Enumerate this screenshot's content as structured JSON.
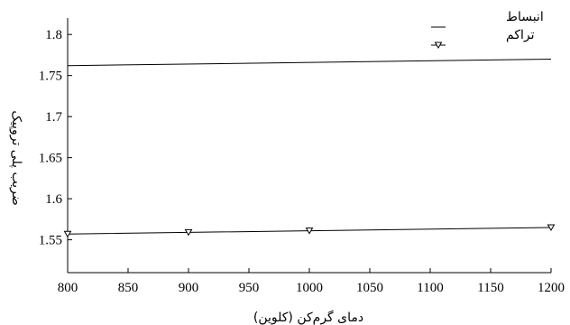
{
  "chart_data": {
    "type": "line",
    "xlabel": "دمای گرم‌کن (کلوین)",
    "ylabel": "ضریب پلی تروپیک",
    "xlim": [
      800,
      1200
    ],
    "ylim": [
      1.51,
      1.82
    ],
    "xticks": [
      800,
      850,
      900,
      950,
      1000,
      1050,
      1100,
      1150,
      1200
    ],
    "yticks": [
      1.55,
      1.6,
      1.65,
      1.7,
      1.75,
      1.8
    ],
    "ytick_labels": [
      "1.55",
      "1.6",
      "1.65",
      "1.7",
      "1.75",
      "1.8"
    ],
    "grid": false,
    "legend_position": "top-right",
    "series": [
      {
        "name": "انبساط",
        "marker": "none",
        "color": "#000000",
        "x": [
          800,
          1200
        ],
        "y": [
          1.762,
          1.77
        ]
      },
      {
        "name": "تراکم",
        "marker": "triangle-down",
        "color": "#000000",
        "x": [
          800,
          900,
          1000,
          1200
        ],
        "y": [
          1.557,
          1.559,
          1.561,
          1.565
        ]
      }
    ]
  }
}
